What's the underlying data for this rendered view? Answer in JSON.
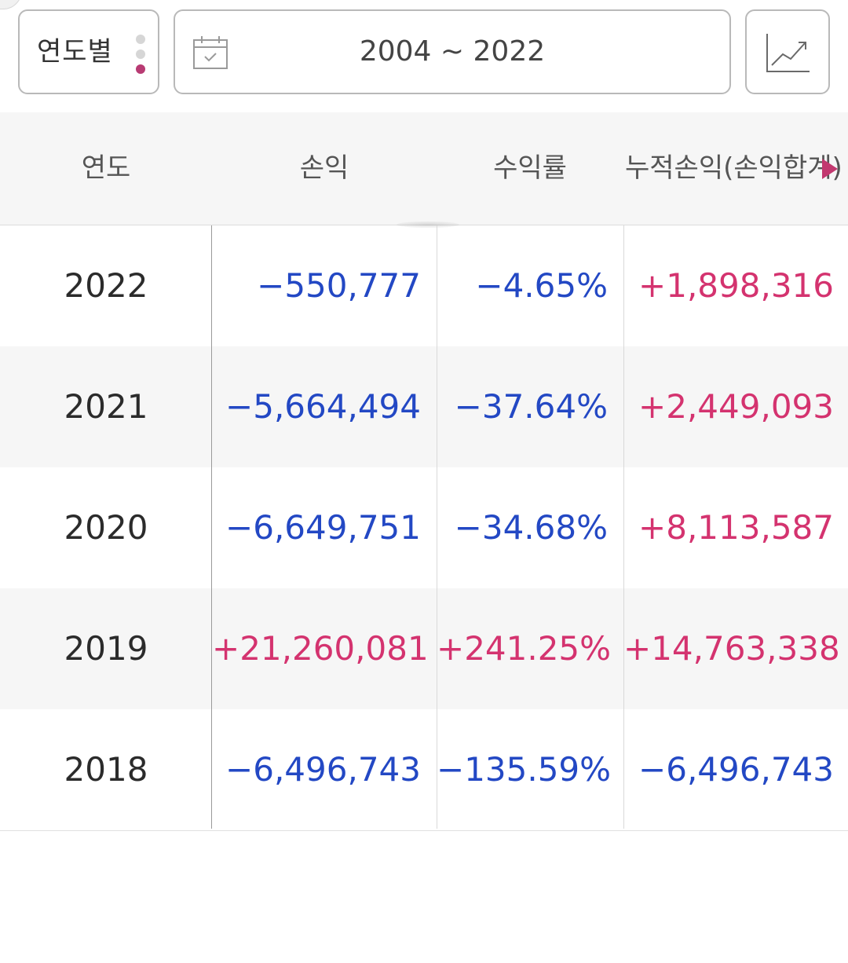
{
  "toolbar": {
    "period_label": "연도별",
    "range_text": "2004 ~ 2022",
    "icons": {
      "calendar": "calendar-icon",
      "chart": "line-chart-icon",
      "more": "more-dots-icon"
    }
  },
  "table": {
    "headers": [
      "연도",
      "손익",
      "수익률",
      "누적손익(손익합계)"
    ],
    "rows": [
      {
        "year": "2022",
        "profit": "−550,777",
        "profit_sign": "neg",
        "rate": "−4.65%",
        "rate_sign": "neg",
        "cumulative": "+1,898,316",
        "cumulative_sign": "pos"
      },
      {
        "year": "2021",
        "profit": "−5,664,494",
        "profit_sign": "neg",
        "rate": "−37.64%",
        "rate_sign": "neg",
        "cumulative": "+2,449,093",
        "cumulative_sign": "pos"
      },
      {
        "year": "2020",
        "profit": "−6,649,751",
        "profit_sign": "neg",
        "rate": "−34.68%",
        "rate_sign": "neg",
        "cumulative": "+8,113,587",
        "cumulative_sign": "pos"
      },
      {
        "year": "2019",
        "profit": "+21,260,081",
        "profit_sign": "pos",
        "rate": "+241.25%",
        "rate_sign": "pos",
        "cumulative": "+14,763,338",
        "cumulative_sign": "pos"
      },
      {
        "year": "2018",
        "profit": "−6,496,743",
        "profit_sign": "neg",
        "rate": "−135.59%",
        "rate_sign": "neg",
        "cumulative": "−6,496,743",
        "cumulative_sign": "neg"
      }
    ]
  },
  "colors": {
    "negative": "#2348c4",
    "positive": "#d4336f",
    "accent_dot": "#b83b73",
    "header_bg": "#f6f6f6"
  }
}
